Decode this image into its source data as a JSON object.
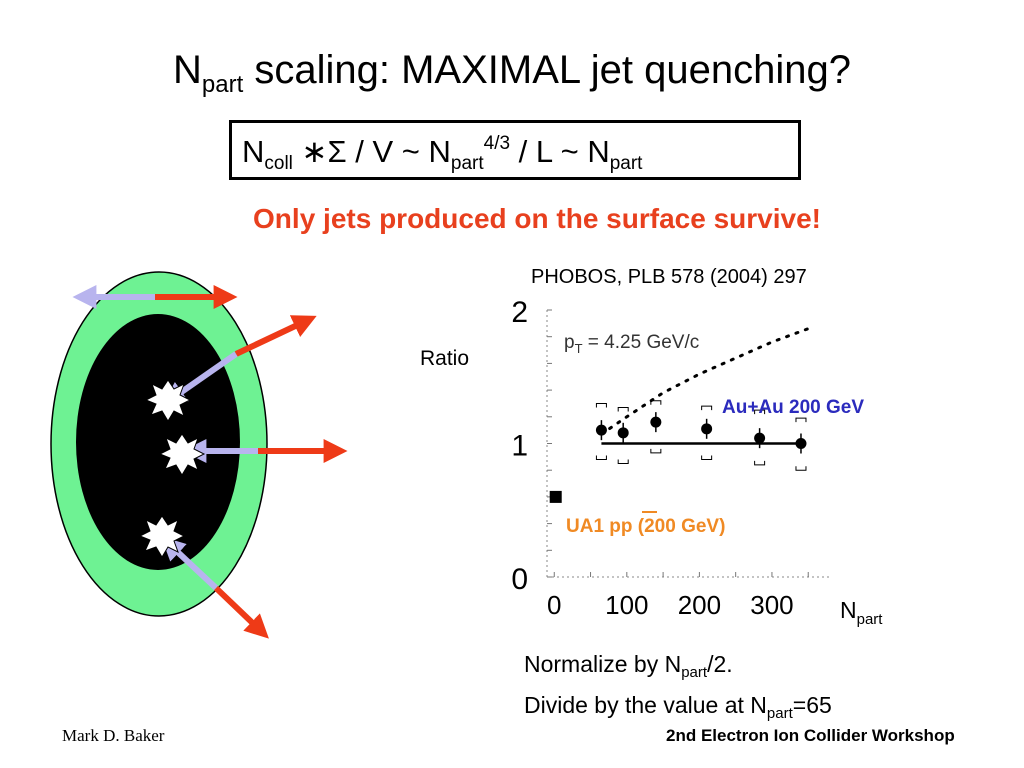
{
  "slide": {
    "title_main": "N",
    "title_sub": "part",
    "title_rest": " scaling: MAXIMAL jet quenching?",
    "formula": {
      "n1": "N",
      "n1_sub": "coll",
      "op": " ∗Σ / V ~ N",
      "n2_sub": "part",
      "n2_sup": "4/3",
      "mid": " / L ~  N",
      "n3_sub": "part"
    },
    "subtitle": "Only jets produced on the surface survive!",
    "citation": "PHOBOS, PLB 578 (2004) 297",
    "notes": {
      "line1_a": "Normalize by N",
      "line1_sub": "part",
      "line1_b": "/2.",
      "line2_a": "Divide by the value at N",
      "line2_sub": "part",
      "line2_b": "=65"
    },
    "footer_left": "Mark D. Baker",
    "footer_right": "2nd Electron Ion Collider Workshop"
  },
  "chart_data": {
    "type": "scatter",
    "xlabel": "N",
    "xlabel_sub": "part",
    "ylabel": "Ratio",
    "xlim": [
      -10,
      380
    ],
    "ylim": [
      0,
      2
    ],
    "x_ticks": [
      0,
      100,
      200,
      300
    ],
    "y_ticks": [
      0,
      1,
      2
    ],
    "annotation": "p",
    "annotation_sub": "T",
    "annotation_rest": " = 4.25 GeV/c",
    "series": [
      {
        "name": "Au+Au 200 GeV",
        "color": "#2b2bbd",
        "x": [
          65,
          95,
          140,
          210,
          283,
          340
        ],
        "y": [
          1.1,
          1.08,
          1.16,
          1.11,
          1.04,
          1.0
        ],
        "sys_low": [
          0.88,
          0.85,
          0.93,
          0.88,
          0.84,
          0.8
        ],
        "sys_high": [
          1.3,
          1.27,
          1.32,
          1.28,
          1.25,
          1.19
        ]
      },
      {
        "name": "UA1 pp  (200 GeV)",
        "color": "#f08a24",
        "x": [
          2
        ],
        "y": [
          0.6
        ]
      }
    ],
    "reference_line": {
      "y": 1.0,
      "x_range": [
        65,
        345
      ]
    },
    "scaling_curve": {
      "x": [
        65,
        100,
        150,
        200,
        250,
        300,
        350
      ],
      "y": [
        1.07,
        1.2,
        1.38,
        1.52,
        1.64,
        1.76,
        1.86
      ]
    }
  },
  "diagram": {
    "outer_color": "#6ef293",
    "core_color": "#000000",
    "arrow_outward_color": "#ee3a17",
    "arrow_inward_color": "#b8b4ee",
    "jet_source_color": "#ffffff"
  }
}
